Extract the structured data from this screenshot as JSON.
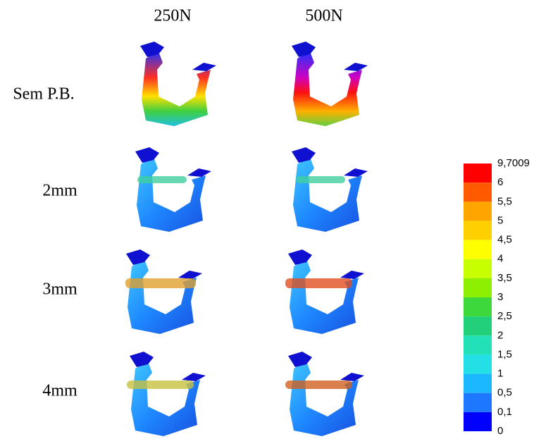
{
  "columns": [
    "250N",
    "500N"
  ],
  "rows": [
    "Sem P.B.",
    "2mm",
    "3mm",
    "4mm"
  ],
  "legend": {
    "labels": [
      "9,7009",
      "6",
      "5,5",
      "5",
      "4,5",
      "4",
      "3,5",
      "3",
      "2,5",
      "2",
      "1,5",
      "1",
      "0,5",
      "0,1",
      "0"
    ],
    "colors": [
      "#ff0000",
      "#ff5a00",
      "#ffa500",
      "#ffd000",
      "#ffff00",
      "#c8ff00",
      "#8cf000",
      "#3cd83c",
      "#22d07a",
      "#22e0b8",
      "#22e0e6",
      "#1cb8ff",
      "#1e78ff",
      "#0000ff"
    ]
  }
}
